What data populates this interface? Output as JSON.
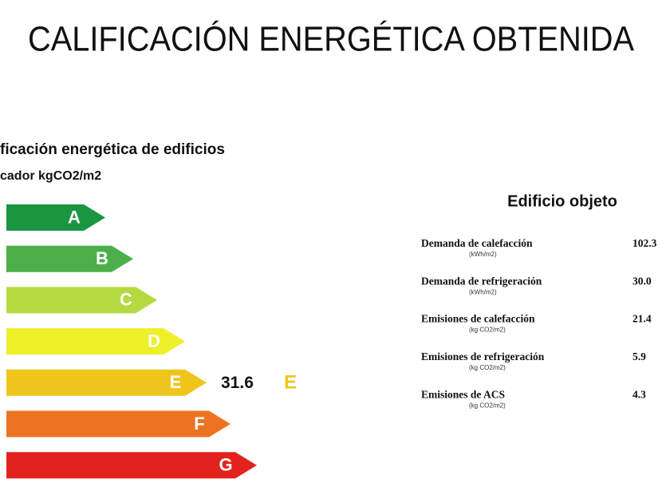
{
  "header": {
    "title": "CALIFICACIÓN ENERGÉTICA OBTENIDA"
  },
  "scale": {
    "title": "ficación energética de edificios",
    "subtitle": "cador kgCO2/m2",
    "ratings": [
      {
        "letter": "A",
        "color": "#1a9641"
      },
      {
        "letter": "B",
        "color": "#4caf4a"
      },
      {
        "letter": "C",
        "color": "#b5d940"
      },
      {
        "letter": "D",
        "color": "#eef02a"
      },
      {
        "letter": "E",
        "color": "#efc51c"
      },
      {
        "letter": "F",
        "color": "#ec7322"
      },
      {
        "letter": "G",
        "color": "#e2231d"
      }
    ],
    "result": {
      "value": "31.6",
      "letter": "E"
    }
  },
  "building": {
    "title": "Edificio objeto",
    "rows": [
      {
        "label": "Demanda de calefacción",
        "unit": "(kWh/m2)",
        "value": "102.3"
      },
      {
        "label": "Demanda de refrigeración",
        "unit": "(kWh/m2)",
        "value": "30.0"
      },
      {
        "label": "Emisiones de calefacción",
        "unit": "(kg CO2/m2)",
        "value": "21.4"
      },
      {
        "label": "Emisiones de refrigeración",
        "unit": "(kg CO2/m2)",
        "value": "5.9"
      },
      {
        "label": "Emisiones de ACS",
        "unit": "(kg CO2/m2)",
        "value": "4.3"
      }
    ]
  }
}
